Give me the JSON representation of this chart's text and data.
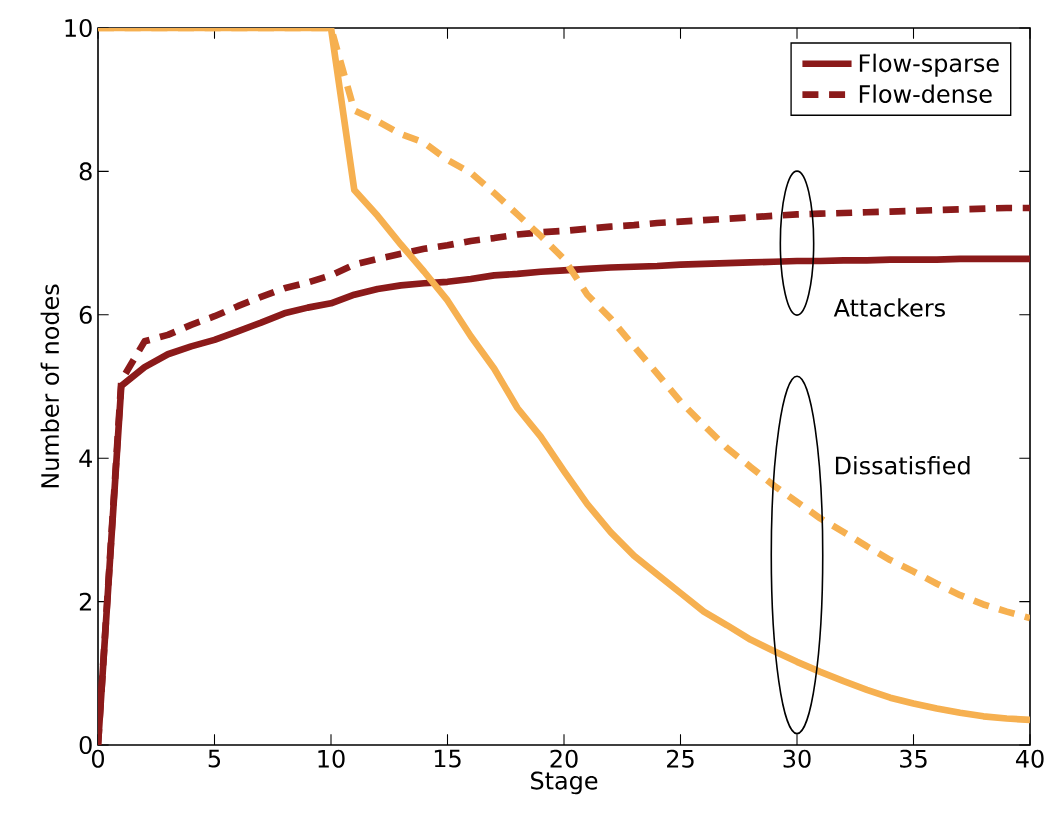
{
  "chart_data": {
    "type": "line",
    "xlabel": "Stage",
    "ylabel": "Number of nodes",
    "x": [
      0,
      1,
      2,
      3,
      4,
      5,
      6,
      7,
      8,
      9,
      10,
      11,
      12,
      13,
      14,
      15,
      16,
      17,
      18,
      19,
      20,
      21,
      22,
      23,
      24,
      25,
      26,
      27,
      28,
      29,
      30,
      31,
      32,
      33,
      34,
      35,
      36,
      37,
      38,
      39,
      40
    ],
    "series": [
      {
        "name": "Flow-sparse",
        "color": "#8b1a1a",
        "line_style": "solid",
        "values": [
          0,
          5.01,
          5.27,
          5.45,
          5.56,
          5.65,
          5.77,
          5.89,
          6.02,
          6.1,
          6.16,
          6.28,
          6.36,
          6.41,
          6.44,
          6.46,
          6.5,
          6.55,
          6.57,
          6.6,
          6.62,
          6.64,
          6.66,
          6.67,
          6.68,
          6.7,
          6.71,
          6.72,
          6.73,
          6.74,
          6.75,
          6.75,
          6.76,
          6.76,
          6.77,
          6.77,
          6.77,
          6.78,
          6.78,
          6.78,
          6.78
        ]
      },
      {
        "name": "Flow-dense",
        "color": "#8b1a1a",
        "line_style": "dashed",
        "values": [
          0,
          5.08,
          5.63,
          5.72,
          5.86,
          5.98,
          6.12,
          6.25,
          6.37,
          6.45,
          6.55,
          6.7,
          6.78,
          6.85,
          6.92,
          6.97,
          7.03,
          7.07,
          7.12,
          7.15,
          7.17,
          7.2,
          7.23,
          7.25,
          7.28,
          7.3,
          7.32,
          7.34,
          7.36,
          7.38,
          7.4,
          7.41,
          7.42,
          7.43,
          7.44,
          7.45,
          7.46,
          7.47,
          7.48,
          7.49,
          7.49
        ]
      },
      {
        "color": "#f6b050",
        "line_style": "solid",
        "values": [
          10,
          10,
          10,
          10,
          10,
          10,
          10,
          10,
          10,
          10,
          10,
          7.74,
          7.38,
          6.98,
          6.6,
          6.2,
          5.7,
          5.25,
          4.7,
          4.3,
          3.82,
          3.36,
          2.97,
          2.64,
          2.38,
          2.12,
          1.86,
          1.67,
          1.47,
          1.31,
          1.16,
          1.02,
          0.89,
          0.77,
          0.66,
          0.58,
          0.51,
          0.45,
          0.4,
          0.37,
          0.35
        ]
      },
      {
        "color": "#f6b050",
        "line_style": "dashed",
        "values": [
          10,
          10,
          10,
          10,
          10,
          10,
          10,
          10,
          10,
          10,
          10,
          8.85,
          8.7,
          8.52,
          8.4,
          8.16,
          7.98,
          7.7,
          7.4,
          7.1,
          6.78,
          6.28,
          5.95,
          5.56,
          5.18,
          4.79,
          4.46,
          4.14,
          3.88,
          3.62,
          3.39,
          3.16,
          2.97,
          2.77,
          2.58,
          2.42,
          2.25,
          2.09,
          1.96,
          1.86,
          1.77
        ]
      }
    ],
    "annotations": [
      "Attackers",
      "Dissatisfied"
    ],
    "xlim": [
      0,
      40
    ],
    "ylim": [
      0,
      10
    ],
    "xticks": [
      0,
      5,
      10,
      15,
      20,
      25,
      30,
      35,
      40
    ],
    "yticks": [
      0,
      2,
      4,
      6,
      8,
      10
    ],
    "grid": false,
    "legend": "top right",
    "marker": "none"
  }
}
